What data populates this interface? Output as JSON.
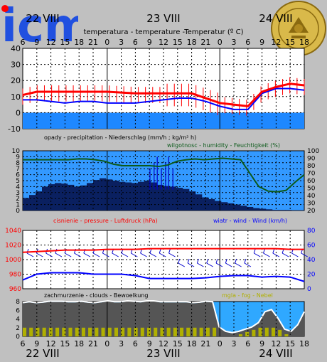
{
  "logo": {
    "text": "icm",
    "seal_text": "UNIVERSITAS VARSOVIENSIS"
  },
  "dates": {
    "top": [
      "22 VIII",
      "23 VIII",
      "24 VIII"
    ],
    "bottom": [
      "22 VIII",
      "23 VIII",
      "24 VIII"
    ]
  },
  "hour_ticks": [
    "6",
    "9",
    "12",
    "15",
    "18",
    "21",
    "0",
    "3",
    "6",
    "9",
    "12",
    "15",
    "18",
    "21",
    "0",
    "3",
    "6",
    "9",
    "12",
    "15",
    "18"
  ],
  "colors": {
    "bg": "#c0c0c0",
    "plot_bg": "#ffffff",
    "rain_bg": "#3399ff",
    "rain_bars": "#0a2060",
    "humidity_line": "#0b5a1a",
    "pressure": "#ff0000",
    "wind": "#0000ff",
    "temp": "#ff0000",
    "dew": "#0000ff",
    "below_zero": "#1e88ff",
    "clouds": "#555555",
    "fog": "#b0b000"
  },
  "chart_data": [
    {
      "type": "line",
      "title": "temperatura - temperature -Temperatur (º C)",
      "ylim": [
        -10,
        40
      ],
      "yticks": [
        -10,
        0,
        10,
        20,
        30,
        40
      ],
      "x": [
        0,
        1,
        2,
        3,
        4,
        5,
        6,
        7,
        8,
        9,
        10,
        11,
        12,
        13,
        14,
        15,
        16,
        17,
        18,
        19,
        20
      ],
      "series": [
        {
          "name": "temperature",
          "values": [
            11,
            13,
            13,
            13,
            13,
            13,
            13,
            12.5,
            12,
            12,
            12,
            12,
            12,
            9,
            6,
            5,
            4,
            13,
            16,
            18,
            17
          ]
        },
        {
          "name": "dew point",
          "values": [
            8,
            8,
            7,
            6,
            7,
            7,
            6,
            6,
            6,
            7,
            8,
            9,
            9,
            7,
            4,
            2,
            2,
            12,
            15,
            15,
            14
          ]
        }
      ]
    },
    {
      "type": "bar",
      "title_left": "opady - precipitation - Niederschlag (mm/h ; kg/m² h)",
      "title_right": "wilgotnosc - humidity - Feuchtigkeit (%)",
      "ylim_left": [
        0,
        10
      ],
      "yticks_left": [
        0,
        1,
        2,
        3,
        4,
        5,
        6,
        7,
        8,
        9,
        10
      ],
      "ylim_right": [
        20,
        100
      ],
      "yticks_right": [
        20,
        30,
        40,
        50,
        60,
        70,
        80,
        90,
        100
      ],
      "series": [
        {
          "name": "precipitation",
          "values": [
            2.1,
            2.6,
            3.2,
            4.0,
            4.4,
            4.6,
            4.5,
            4.3,
            4.0,
            4.2,
            4.6,
            5.1,
            5.4,
            5.2,
            5.0,
            4.8,
            4.7,
            4.6,
            4.8,
            5.0,
            4.7,
            4.3,
            4.1,
            4.0,
            3.8,
            3.6,
            3.2,
            2.7,
            2.2,
            1.9,
            1.6,
            1.4,
            1.2,
            1.0,
            0.8,
            0.6,
            0.4,
            0.3,
            0.2,
            0.1,
            0.1,
            0.1,
            0.05,
            0.05
          ]
        },
        {
          "name": "humidity",
          "values": [
            88,
            88,
            88,
            88,
            88,
            88,
            89,
            89,
            88,
            86,
            82,
            80,
            80,
            80,
            80,
            79,
            81,
            86,
            88,
            89,
            88,
            89,
            90,
            89,
            88,
            70,
            52,
            46,
            45,
            47,
            58,
            68
          ]
        }
      ],
      "rain_spikes": [
        12.2,
        12.6,
        12.9,
        13.3,
        13.7,
        14.0,
        14.4
      ]
    },
    {
      "type": "line",
      "title_left": "cisnienie - pressure - Luftdruck (hPa)",
      "title_right": "wiatr - wind - Wind (km/h)",
      "ylim_left": [
        960,
        1040
      ],
      "yticks_left": [
        960,
        980,
        1000,
        1020,
        1040
      ],
      "ylim_right": [
        0,
        80
      ],
      "yticks_right": [
        0,
        20,
        40,
        60,
        80
      ],
      "series": [
        {
          "name": "pressure",
          "values": [
            1010,
            1011,
            1012,
            1013,
            1013,
            1013,
            1014,
            1014,
            1014,
            1015,
            1015,
            1015,
            1015,
            1015,
            1015,
            1015,
            1015,
            1015,
            1015,
            1014,
            1014
          ]
        },
        {
          "name": "wind",
          "values": [
            12,
            20,
            22,
            22,
            22,
            20,
            20,
            20,
            18,
            14,
            14,
            14,
            14,
            15,
            17,
            18,
            18,
            16,
            17,
            16,
            10
          ]
        }
      ]
    },
    {
      "type": "area",
      "title_left": "zachmurzenie - clouds - Bewoelkung",
      "title_right": "mgla - fog - Nebel",
      "ylim": [
        0,
        8
      ],
      "yticks": [
        0,
        2,
        4,
        6,
        8
      ],
      "series": [
        {
          "name": "clouds",
          "values": [
            7.6,
            7.8,
            7.6,
            7.7,
            7.9,
            7.9,
            7.9,
            7.8,
            7.8,
            7.9,
            7.7,
            7.6,
            7.8,
            8.0,
            7.8,
            7.8,
            8.0,
            7.9,
            7.8,
            8.0,
            8.0,
            7.8,
            7.8,
            7.8,
            7.8,
            7.8,
            7.6,
            7.7,
            7.9,
            7.8,
            2.0,
            1.0,
            0.7,
            1.0,
            1.5,
            2.0,
            3.0,
            5.5,
            6.0,
            4.0,
            1.5,
            1.0,
            2.5,
            5.5
          ]
        },
        {
          "name": "fog",
          "values": [
            2,
            2,
            2,
            2,
            2,
            2,
            2,
            2,
            2,
            2,
            2,
            2,
            2,
            2,
            2,
            2,
            2,
            2,
            2,
            2,
            2,
            2,
            2,
            2,
            2,
            2,
            2,
            2,
            2,
            2,
            0,
            0,
            0,
            0.5,
            1,
            1.5,
            2,
            2,
            2,
            1.5,
            0.5,
            0,
            0,
            0
          ]
        }
      ]
    }
  ]
}
